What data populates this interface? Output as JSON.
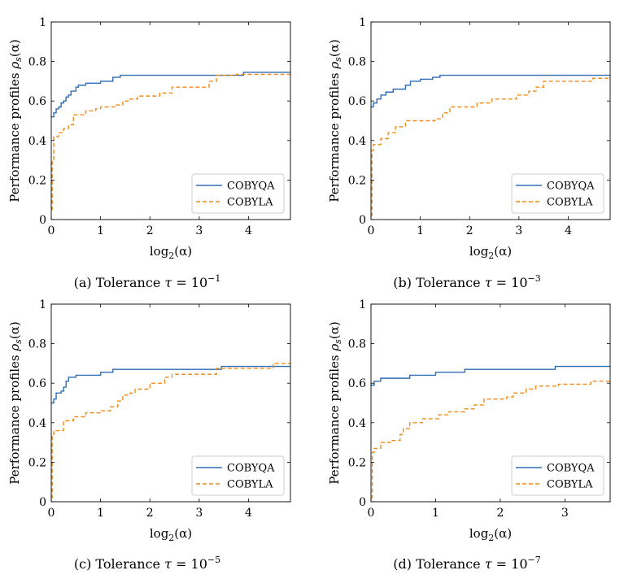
{
  "chart_data": [
    {
      "type": "line",
      "caption": {
        "prefix": "(a) Tolerance ",
        "tau": "τ",
        "eq": " = 10",
        "exp": "−1"
      },
      "xlim": [
        0,
        4.85
      ],
      "ylim": [
        0,
        1
      ],
      "xticks": [
        "0",
        "1",
        "2",
        "3",
        "4"
      ],
      "yticks": [
        "0",
        "0.2",
        "0.4",
        "0.6",
        "0.8",
        "1"
      ],
      "xlabel": {
        "main": "log",
        "sub": "2",
        "tail": "(α)"
      },
      "ylabel": {
        "main": "Performance profiles ",
        "rho": "ρ",
        "sub": "s",
        "tail": "(α)"
      },
      "legend": "bottom-right",
      "series": [
        {
          "name": "COBYQA",
          "color": "#2e6eb5",
          "dash": "solid",
          "x": [
            0,
            0.05,
            0.1,
            0.15,
            0.2,
            0.25,
            0.3,
            0.35,
            0.4,
            0.5,
            0.55,
            0.7,
            1.0,
            1.25,
            1.4,
            3.9,
            4.85
          ],
          "y": [
            0.52,
            0.54,
            0.56,
            0.57,
            0.59,
            0.6,
            0.62,
            0.63,
            0.65,
            0.67,
            0.68,
            0.69,
            0.7,
            0.72,
            0.73,
            0.745,
            0.745
          ]
        },
        {
          "name": "COBYLA",
          "color": "#f08c1c",
          "dash": "dashed",
          "x": [
            0,
            0.02,
            0.05,
            0.15,
            0.25,
            0.35,
            0.45,
            0.7,
            0.9,
            1.0,
            1.3,
            1.45,
            1.6,
            1.75,
            2.2,
            2.45,
            3.2,
            3.35,
            3.75,
            4.85
          ],
          "y": [
            0.05,
            0.3,
            0.42,
            0.44,
            0.46,
            0.48,
            0.53,
            0.55,
            0.56,
            0.57,
            0.58,
            0.6,
            0.61,
            0.625,
            0.64,
            0.67,
            0.7,
            0.73,
            0.735,
            0.74
          ]
        }
      ]
    },
    {
      "type": "line",
      "caption": {
        "prefix": "(b) Tolerance ",
        "tau": "τ",
        "eq": " = 10",
        "exp": "−3"
      },
      "xlim": [
        0,
        4.85
      ],
      "ylim": [
        0,
        1
      ],
      "xticks": [
        "0",
        "1",
        "2",
        "3",
        "4"
      ],
      "yticks": [
        "0",
        "0.2",
        "0.4",
        "0.6",
        "0.8",
        "1"
      ],
      "xlabel": {
        "main": "log",
        "sub": "2",
        "tail": "(α)"
      },
      "ylabel": {
        "main": "Performance profiles ",
        "rho": "ρ",
        "sub": "s",
        "tail": "(α)"
      },
      "legend": "bottom-right",
      "series": [
        {
          "name": "COBYQA",
          "color": "#2e6eb5",
          "dash": "solid",
          "x": [
            0,
            0.05,
            0.12,
            0.2,
            0.3,
            0.45,
            0.7,
            0.8,
            1.0,
            1.25,
            1.4,
            4.85
          ],
          "y": [
            0.57,
            0.59,
            0.61,
            0.63,
            0.645,
            0.66,
            0.68,
            0.7,
            0.71,
            0.72,
            0.73,
            0.73
          ]
        },
        {
          "name": "COBYLA",
          "color": "#f08c1c",
          "dash": "dashed",
          "x": [
            0,
            0.02,
            0.05,
            0.2,
            0.35,
            0.5,
            0.7,
            1.3,
            1.45,
            1.6,
            2.15,
            2.45,
            2.95,
            3.2,
            3.35,
            3.5,
            4.5,
            4.85
          ],
          "y": [
            0.02,
            0.35,
            0.38,
            0.41,
            0.44,
            0.47,
            0.5,
            0.51,
            0.54,
            0.57,
            0.59,
            0.61,
            0.63,
            0.65,
            0.67,
            0.7,
            0.715,
            0.715
          ]
        }
      ]
    },
    {
      "type": "line",
      "caption": {
        "prefix": "(c) Tolerance ",
        "tau": "τ",
        "eq": " = 10",
        "exp": "−5"
      },
      "xlim": [
        0,
        4.85
      ],
      "ylim": [
        0,
        1
      ],
      "xticks": [
        "0",
        "1",
        "2",
        "3",
        "4"
      ],
      "yticks": [
        "0",
        "0.2",
        "0.4",
        "0.6",
        "0.8",
        "1"
      ],
      "xlabel": {
        "main": "log",
        "sub": "2",
        "tail": "(α)"
      },
      "ylabel": {
        "main": "Performance profiles ",
        "rho": "ρ",
        "sub": "s",
        "tail": "(α)"
      },
      "legend": "bottom-right",
      "series": [
        {
          "name": "COBYQA",
          "color": "#2e6eb5",
          "dash": "solid",
          "x": [
            0,
            0.05,
            0.1,
            0.2,
            0.25,
            0.3,
            0.35,
            0.5,
            1.0,
            1.25,
            3.45,
            4.85
          ],
          "y": [
            0.5,
            0.52,
            0.55,
            0.56,
            0.58,
            0.61,
            0.63,
            0.64,
            0.655,
            0.67,
            0.685,
            0.685
          ]
        },
        {
          "name": "COBYLA",
          "color": "#f08c1c",
          "dash": "dashed",
          "x": [
            0,
            0.02,
            0.05,
            0.25,
            0.45,
            0.7,
            1.0,
            1.2,
            1.35,
            1.45,
            1.6,
            1.7,
            2.0,
            2.3,
            2.45,
            3.35,
            4.5,
            4.85
          ],
          "y": [
            0.02,
            0.34,
            0.36,
            0.41,
            0.43,
            0.45,
            0.46,
            0.48,
            0.51,
            0.54,
            0.55,
            0.57,
            0.6,
            0.63,
            0.645,
            0.675,
            0.7,
            0.7
          ]
        }
      ]
    },
    {
      "type": "line",
      "caption": {
        "prefix": "(d) Tolerance ",
        "tau": "τ",
        "eq": " = 10",
        "exp": "−7"
      },
      "xlim": [
        0,
        3.7
      ],
      "ylim": [
        0,
        1
      ],
      "xticks": [
        "0",
        "1",
        "2",
        "3"
      ],
      "yticks": [
        "0",
        "0.2",
        "0.4",
        "0.6",
        "0.8",
        "1"
      ],
      "xlabel": {
        "main": "log",
        "sub": "2",
        "tail": "(α)"
      },
      "ylabel": {
        "main": "Performance profiles ",
        "rho": "ρ",
        "sub": "s",
        "tail": "(α)"
      },
      "legend": "bottom-right",
      "series": [
        {
          "name": "COBYQA",
          "color": "#2e6eb5",
          "dash": "solid",
          "x": [
            0,
            0.05,
            0.15,
            0.6,
            1.0,
            1.45,
            2.85,
            3.7
          ],
          "y": [
            0.59,
            0.61,
            0.625,
            0.64,
            0.655,
            0.67,
            0.685,
            0.685
          ]
        },
        {
          "name": "COBYLA",
          "color": "#f08c1c",
          "dash": "dashed",
          "x": [
            0,
            0.02,
            0.05,
            0.15,
            0.3,
            0.45,
            0.5,
            0.6,
            0.8,
            1.05,
            1.2,
            1.45,
            1.6,
            1.75,
            2.1,
            2.2,
            2.4,
            2.55,
            2.9,
            3.4,
            3.7
          ],
          "y": [
            0.02,
            0.25,
            0.27,
            0.3,
            0.31,
            0.34,
            0.37,
            0.4,
            0.42,
            0.44,
            0.455,
            0.47,
            0.49,
            0.52,
            0.53,
            0.55,
            0.57,
            0.585,
            0.595,
            0.61,
            0.61
          ]
        }
      ]
    }
  ]
}
